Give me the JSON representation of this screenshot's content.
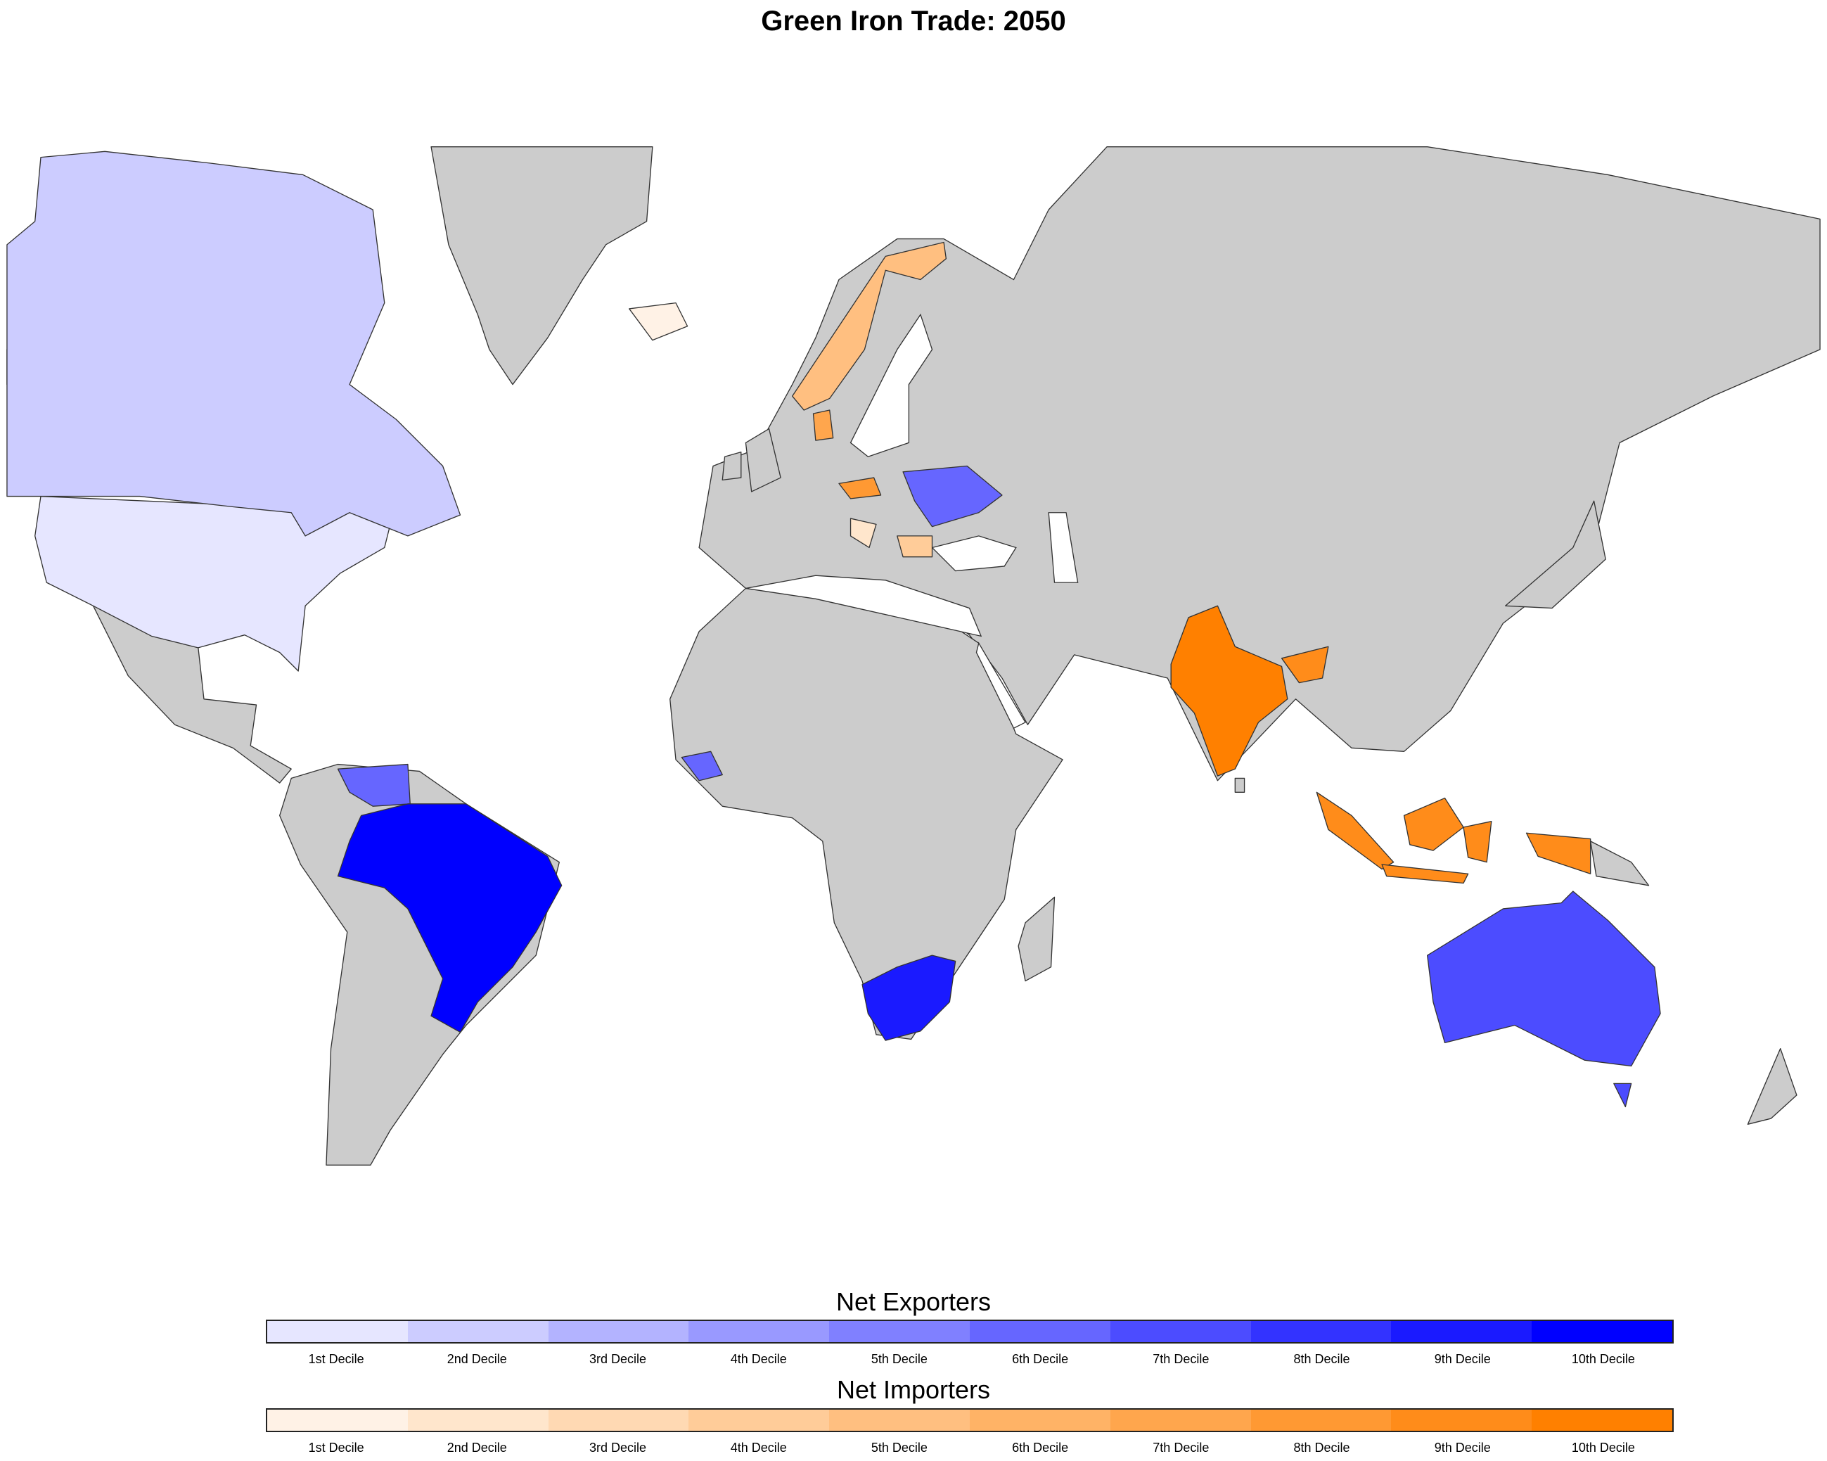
{
  "title": "Green Iron Trade: 2050",
  "colors": {
    "no_data": "#cccccc",
    "border": "#333333",
    "ocean": "#ffffff",
    "exporters": [
      "#e6e6ff",
      "#ccccff",
      "#b3b3ff",
      "#9999ff",
      "#8080ff",
      "#6666ff",
      "#4c4cff",
      "#3333ff",
      "#1a1aff",
      "#0000ff"
    ],
    "importers": [
      "#fff2e6",
      "#ffe6cc",
      "#ffd9b3",
      "#ffcc99",
      "#ffbf80",
      "#ffb366",
      "#ffa64d",
      "#ff9933",
      "#ff8c1a",
      "#ff8000"
    ]
  },
  "legend": {
    "exporters_title": "Net Exporters",
    "importers_title": "Net Importers",
    "labels": [
      "1st Decile",
      "2nd Decile",
      "3rd Decile",
      "4th Decile",
      "5th Decile",
      "6th Decile",
      "7th Decile",
      "8th Decile",
      "9th Decile",
      "10th Decile"
    ]
  },
  "countries": [
    {
      "name": "United States",
      "group": "exporters",
      "decile": 1
    },
    {
      "name": "Canada",
      "group": "exporters",
      "decile": 2
    },
    {
      "name": "Venezuela",
      "group": "exporters",
      "decile": 6
    },
    {
      "name": "Brazil",
      "group": "exporters",
      "decile": 10
    },
    {
      "name": "Guinea",
      "group": "exporters",
      "decile": 6
    },
    {
      "name": "South Africa",
      "group": "exporters",
      "decile": 9
    },
    {
      "name": "Ukraine",
      "group": "exporters",
      "decile": 6
    },
    {
      "name": "Australia",
      "group": "exporters",
      "decile": 7
    },
    {
      "name": "Iceland",
      "group": "importers",
      "decile": 1
    },
    {
      "name": "Norway",
      "group": "importers",
      "decile": 5
    },
    {
      "name": "Denmark",
      "group": "importers",
      "decile": 7
    },
    {
      "name": "Czechia",
      "group": "importers",
      "decile": 8
    },
    {
      "name": "Croatia",
      "group": "importers",
      "decile": 2
    },
    {
      "name": "Bulgaria",
      "group": "importers",
      "decile": 4
    },
    {
      "name": "India",
      "group": "importers",
      "decile": 10
    },
    {
      "name": "Bangladesh",
      "group": "importers",
      "decile": 9
    },
    {
      "name": "Indonesia",
      "group": "importers",
      "decile": 9
    }
  ]
}
